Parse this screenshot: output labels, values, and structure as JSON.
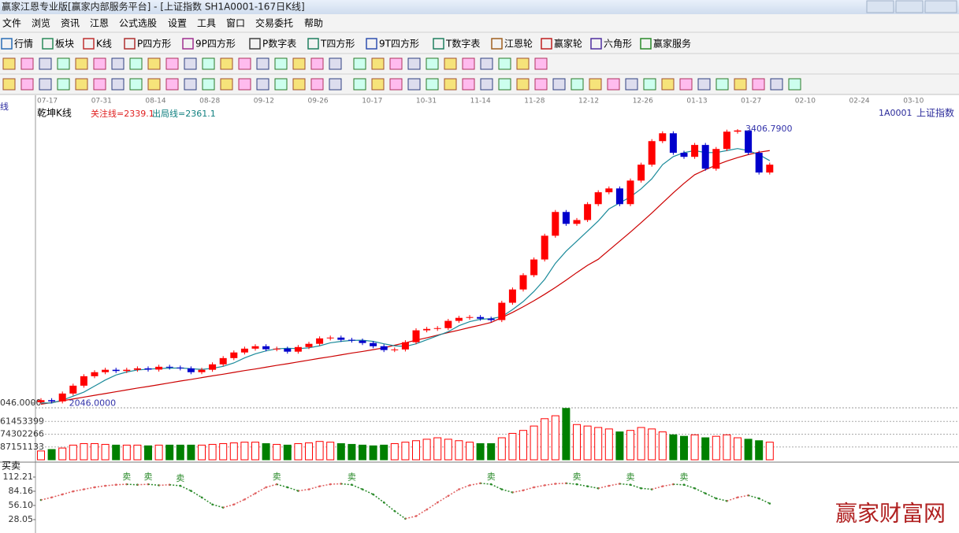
{
  "window": {
    "title": "赢家江恩专业版[赢家内部服务平台] - [上证指数  SH1A0001-167日K线]"
  },
  "menu": [
    "文件",
    "浏览",
    "资讯",
    "江恩",
    "公式选股",
    "设置",
    "工具",
    "窗口",
    "交易委托",
    "帮助"
  ],
  "toolbar": [
    "行情",
    "板块",
    "K线",
    "P四方形",
    "9P四方形",
    "P数字表",
    "T四方形",
    "9T四方形",
    "T数字表",
    "江恩轮",
    "赢家轮",
    "六角形",
    "赢家服务"
  ],
  "watermark": "赢家财富网",
  "chart_data": [
    {
      "type": "candlestick",
      "side_label": "线",
      "panel_title": "乾坤K线",
      "annotations": [
        "关注线=2339.1",
        "出局线=2361.1"
      ],
      "code": "1A0001",
      "name": "上证指数",
      "dates": [
        "07-17",
        "07-31",
        "08-14",
        "08-28",
        "09-12",
        "09-26",
        "10-17",
        "10-31",
        "11-14",
        "11-28",
        "12-12",
        "12-26",
        "01-13",
        "01-27",
        "02-10",
        "02-24",
        "03-10"
      ],
      "high_label": "3406.7900",
      "low_label": "2046.0000",
      "up_color": "#ff0000",
      "down_color": "#0000cc",
      "ylim": [
        2022,
        3524
      ],
      "yticks": [
        {
          "value": 2046,
          "label": "046.0000"
        }
      ],
      "open": [
        2050,
        2060,
        2054,
        2093,
        2132,
        2179,
        2199,
        2211,
        2205,
        2211,
        2218,
        2212,
        2226,
        2222,
        2218,
        2199,
        2211,
        2238,
        2269,
        2297,
        2316,
        2328,
        2313,
        2316,
        2301,
        2324,
        2340,
        2367,
        2371,
        2360,
        2356,
        2344,
        2328,
        2309,
        2312,
        2348,
        2407,
        2414,
        2418,
        2454,
        2469,
        2473,
        2465,
        2458,
        2544,
        2610,
        2681,
        2759,
        2877,
        2995,
        2936,
        2955,
        3034,
        3093,
        3112,
        3034,
        3151,
        3230,
        3347,
        3386,
        3289,
        3269,
        3328,
        3210,
        3308,
        3394,
        3400,
        3289,
        3191
      ],
      "close": [
        2060,
        2054,
        2093,
        2132,
        2179,
        2199,
        2211,
        2205,
        2211,
        2218,
        2212,
        2226,
        2222,
        2218,
        2199,
        2211,
        2238,
        2269,
        2297,
        2316,
        2328,
        2313,
        2316,
        2301,
        2324,
        2340,
        2367,
        2371,
        2360,
        2356,
        2344,
        2328,
        2309,
        2312,
        2348,
        2407,
        2414,
        2418,
        2454,
        2469,
        2473,
        2465,
        2458,
        2544,
        2610,
        2681,
        2759,
        2877,
        2995,
        2936,
        2955,
        3034,
        3093,
        3112,
        3034,
        3151,
        3230,
        3347,
        3386,
        3289,
        3269,
        3328,
        3210,
        3308,
        3394,
        3400,
        3289,
        3191,
        3230
      ],
      "high": [
        2070,
        2070,
        2103,
        2142,
        2189,
        2209,
        2221,
        2221,
        2221,
        2228,
        2228,
        2236,
        2236,
        2232,
        2228,
        2221,
        2248,
        2279,
        2307,
        2326,
        2338,
        2338,
        2326,
        2326,
        2334,
        2350,
        2377,
        2381,
        2381,
        2370,
        2366,
        2354,
        2338,
        2322,
        2358,
        2417,
        2424,
        2428,
        2464,
        2479,
        2483,
        2483,
        2475,
        2554,
        2620,
        2691,
        2769,
        2887,
        3005,
        3005,
        2965,
        3044,
        3103,
        3122,
        3122,
        3161,
        3240,
        3357,
        3396,
        3396,
        3299,
        3338,
        3338,
        3318,
        3404,
        3406.79,
        3402,
        3299,
        3240
      ],
      "low": [
        2046,
        2044,
        2044,
        2083,
        2122,
        2169,
        2189,
        2195,
        2195,
        2201,
        2202,
        2202,
        2212,
        2208,
        2189,
        2189,
        2201,
        2228,
        2259,
        2287,
        2306,
        2303,
        2303,
        2291,
        2291,
        2314,
        2330,
        2357,
        2350,
        2346,
        2334,
        2318,
        2299,
        2299,
        2302,
        2338,
        2397,
        2404,
        2408,
        2444,
        2459,
        2455,
        2448,
        2448,
        2534,
        2600,
        2671,
        2749,
        2867,
        2926,
        2926,
        2945,
        3024,
        3083,
        3024,
        3024,
        3141,
        3220,
        3337,
        3279,
        3259,
        3259,
        3200,
        3200,
        3298,
        3384,
        3279,
        3181,
        3181
      ],
      "ma_short": {
        "color": "#1a8a9a",
        "values": [
          2046,
          2046,
          2060,
          2080,
          2100,
          2130,
          2160,
          2185,
          2200,
          2210,
          2214,
          2217,
          2219,
          2220,
          2216,
          2213,
          2218,
          2228,
          2245,
          2270,
          2290,
          2305,
          2315,
          2318,
          2316,
          2320,
          2330,
          2345,
          2352,
          2357,
          2358,
          2352,
          2340,
          2330,
          2327,
          2340,
          2360,
          2380,
          2400,
          2430,
          2450,
          2462,
          2465,
          2475,
          2510,
          2550,
          2600,
          2660,
          2740,
          2800,
          2850,
          2900,
          2950,
          3010,
          3040,
          3070,
          3110,
          3160,
          3230,
          3270,
          3290,
          3300,
          3290,
          3290,
          3300,
          3310,
          3300,
          3280,
          3250
        ]
      },
      "ma_long": {
        "color": "#cc0000",
        "values": [
          2040,
          2048,
          2057,
          2066,
          2075,
          2084,
          2093,
          2102,
          2111,
          2120,
          2128,
          2137,
          2146,
          2155,
          2163,
          2172,
          2181,
          2189,
          2198,
          2207,
          2215,
          2224,
          2233,
          2241,
          2250,
          2259,
          2268,
          2276,
          2285,
          2294,
          2302,
          2311,
          2320,
          2333,
          2345,
          2358,
          2370,
          2383,
          2396,
          2408,
          2421,
          2433,
          2446,
          2470,
          2496,
          2524,
          2554,
          2586,
          2620,
          2656,
          2694,
          2730,
          2760,
          2805,
          2850,
          2895,
          2942,
          2990,
          3040,
          3090,
          3137,
          3180,
          3205,
          3228,
          3248,
          3265,
          3280,
          3292,
          3300
        ]
      }
    },
    {
      "type": "bar",
      "up_color": "#ff0000",
      "down_color": "#008000",
      "ylim": [
        0,
        354000000
      ],
      "yticks": [
        {
          "value": 87151133,
          "label": "87151133"
        },
        {
          "value": 174302266,
          "label": "74302266"
        },
        {
          "value": 261453399,
          "label": "61453399"
        }
      ],
      "values": [
        60000000,
        70000000,
        80000000,
        100000000,
        110000000,
        110000000,
        105000000,
        100000000,
        100000000,
        100000000,
        95000000,
        100000000,
        100000000,
        100000000,
        100000000,
        100000000,
        105000000,
        110000000,
        115000000,
        120000000,
        120000000,
        110000000,
        105000000,
        100000000,
        110000000,
        115000000,
        125000000,
        120000000,
        110000000,
        105000000,
        100000000,
        95000000,
        100000000,
        110000000,
        120000000,
        130000000,
        140000000,
        150000000,
        140000000,
        130000000,
        120000000,
        110000000,
        110000000,
        150000000,
        180000000,
        200000000,
        230000000,
        280000000,
        300000000,
        350000000,
        240000000,
        230000000,
        220000000,
        210000000,
        190000000,
        200000000,
        220000000,
        210000000,
        190000000,
        170000000,
        160000000,
        170000000,
        150000000,
        160000000,
        170000000,
        150000000,
        140000000,
        130000000,
        120000000
      ]
    },
    {
      "type": "line",
      "panel_title": "买卖",
      "up_color": "#e06060",
      "down_color": "#2a8a2a",
      "ylim": [
        9.4,
        132.4
      ],
      "yticks": [
        112.21,
        84.16,
        {
          "value": 56.1,
          "label": "56.10"
        },
        28.05
      ],
      "values": [
        67,
        72,
        78,
        84,
        88,
        92,
        95,
        97,
        98,
        97,
        98,
        96,
        97,
        95,
        85,
        72,
        58,
        52,
        58,
        68,
        80,
        92,
        98,
        92,
        85,
        88,
        94,
        98,
        99,
        97,
        88,
        78,
        62,
        45,
        30,
        35,
        48,
        62,
        75,
        88,
        96,
        100,
        98,
        88,
        82,
        86,
        92,
        96,
        99,
        100,
        98,
        94,
        90,
        95,
        99,
        97,
        90,
        88,
        94,
        98,
        97,
        90,
        80,
        70,
        65,
        72,
        76,
        70,
        60
      ],
      "signals": [
        null,
        null,
        null,
        null,
        null,
        null,
        null,
        null,
        "卖",
        null,
        "卖",
        null,
        null,
        "卖",
        null,
        null,
        null,
        null,
        null,
        null,
        null,
        null,
        "卖",
        null,
        null,
        null,
        null,
        null,
        null,
        "卖",
        null,
        null,
        null,
        null,
        null,
        null,
        null,
        null,
        null,
        null,
        null,
        null,
        "卖",
        null,
        null,
        null,
        null,
        null,
        null,
        null,
        "卖",
        null,
        null,
        null,
        null,
        "卖",
        null,
        null,
        null,
        null,
        "卖",
        null,
        null,
        null,
        null,
        null,
        null,
        null,
        null
      ]
    }
  ]
}
